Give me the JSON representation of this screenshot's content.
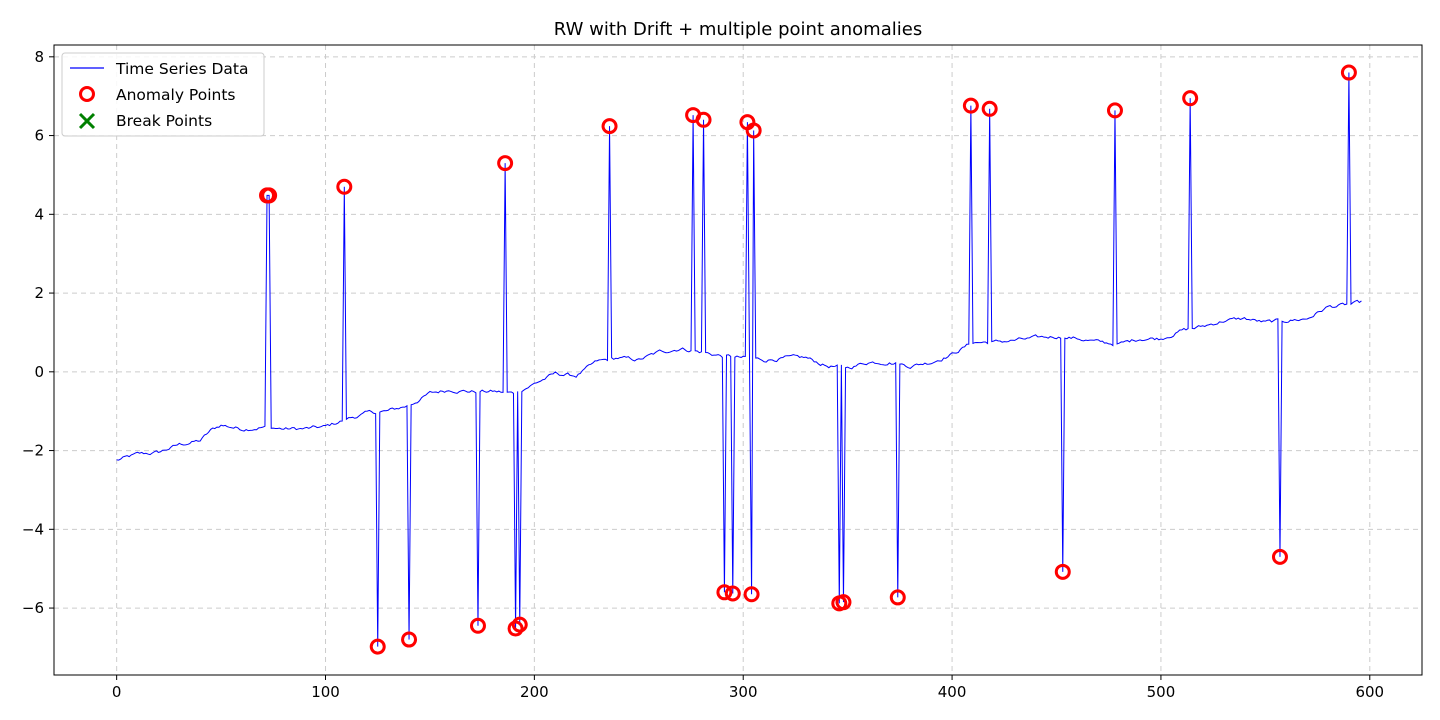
{
  "chart_data": {
    "type": "line",
    "title": "RW with Drift + multiple point anomalies",
    "xlabel": "",
    "ylabel": "",
    "xlim": [
      -30,
      625
    ],
    "ylim": [
      -7.7,
      8.3
    ],
    "x_ticks": [
      0,
      100,
      200,
      300,
      400,
      500,
      600
    ],
    "y_ticks": [
      -6,
      -4,
      -2,
      0,
      2,
      4,
      6,
      8
    ],
    "y_tick_labels": [
      "−6",
      "−4",
      "−2",
      "0",
      "2",
      "4",
      "6",
      "8"
    ],
    "grid": true,
    "legend_position": "top-left",
    "legend": [
      {
        "label": "Time Series Data",
        "marker": "line",
        "color": "#0000ff"
      },
      {
        "label": "Anomaly Points",
        "marker": "circle",
        "color": "#ff0000"
      },
      {
        "label": "Break Points",
        "marker": "x",
        "color": "#008000"
      }
    ],
    "series_color": "#0000ff",
    "anomaly_color": "#ff0000",
    "break_color": "#008000",
    "baseline_knots": [
      [
        0,
        -2.25
      ],
      [
        10,
        -2.1
      ],
      [
        20,
        -2.05
      ],
      [
        30,
        -1.85
      ],
      [
        40,
        -1.75
      ],
      [
        45,
        -1.5
      ],
      [
        50,
        -1.35
      ],
      [
        60,
        -1.45
      ],
      [
        70,
        -1.4
      ],
      [
        80,
        -1.45
      ],
      [
        90,
        -1.45
      ],
      [
        100,
        -1.4
      ],
      [
        110,
        -1.2
      ],
      [
        120,
        -1.05
      ],
      [
        130,
        -1.0
      ],
      [
        140,
        -0.85
      ],
      [
        150,
        -0.55
      ],
      [
        160,
        -0.45
      ],
      [
        170,
        -0.5
      ],
      [
        180,
        -0.5
      ],
      [
        190,
        -0.55
      ],
      [
        200,
        -0.3
      ],
      [
        210,
        -0.05
      ],
      [
        220,
        -0.1
      ],
      [
        230,
        0.25
      ],
      [
        240,
        0.35
      ],
      [
        250,
        0.3
      ],
      [
        260,
        0.5
      ],
      [
        270,
        0.6
      ],
      [
        280,
        0.5
      ],
      [
        290,
        0.4
      ],
      [
        300,
        0.35
      ],
      [
        310,
        0.3
      ],
      [
        320,
        0.35
      ],
      [
        330,
        0.35
      ],
      [
        340,
        0.15
      ],
      [
        350,
        0.1
      ],
      [
        360,
        0.25
      ],
      [
        370,
        0.25
      ],
      [
        380,
        0.15
      ],
      [
        390,
        0.25
      ],
      [
        400,
        0.45
      ],
      [
        410,
        0.75
      ],
      [
        420,
        0.75
      ],
      [
        430,
        0.8
      ],
      [
        440,
        0.85
      ],
      [
        450,
        0.9
      ],
      [
        460,
        0.85
      ],
      [
        470,
        0.75
      ],
      [
        480,
        0.7
      ],
      [
        490,
        0.85
      ],
      [
        500,
        0.85
      ],
      [
        510,
        1.05
      ],
      [
        520,
        1.15
      ],
      [
        530,
        1.3
      ],
      [
        540,
        1.35
      ],
      [
        550,
        1.25
      ],
      [
        560,
        1.3
      ],
      [
        570,
        1.35
      ],
      [
        580,
        1.65
      ],
      [
        590,
        1.7
      ],
      [
        596,
        1.75
      ]
    ],
    "anomalies": [
      {
        "x": 72,
        "y": 4.48
      },
      {
        "x": 73,
        "y": 4.48
      },
      {
        "x": 109,
        "y": 4.7
      },
      {
        "x": 125,
        "y": -6.98
      },
      {
        "x": 140,
        "y": -6.8
      },
      {
        "x": 173,
        "y": -6.45
      },
      {
        "x": 186,
        "y": 5.3
      },
      {
        "x": 191,
        "y": -6.52
      },
      {
        "x": 193,
        "y": -6.42
      },
      {
        "x": 236,
        "y": 6.24
      },
      {
        "x": 276,
        "y": 6.52
      },
      {
        "x": 281,
        "y": 6.4
      },
      {
        "x": 291,
        "y": -5.6
      },
      {
        "x": 295,
        "y": -5.63
      },
      {
        "x": 302,
        "y": 6.34
      },
      {
        "x": 304,
        "y": -5.65
      },
      {
        "x": 305,
        "y": 6.13
      },
      {
        "x": 346,
        "y": -5.88
      },
      {
        "x": 348,
        "y": -5.85
      },
      {
        "x": 374,
        "y": -5.73
      },
      {
        "x": 409,
        "y": 6.76
      },
      {
        "x": 418,
        "y": 6.68
      },
      {
        "x": 453,
        "y": -5.08
      },
      {
        "x": 478,
        "y": 6.64
      },
      {
        "x": 514,
        "y": 6.95
      },
      {
        "x": 557,
        "y": -4.7
      },
      {
        "x": 590,
        "y": 7.6
      }
    ],
    "n_points": 597
  }
}
